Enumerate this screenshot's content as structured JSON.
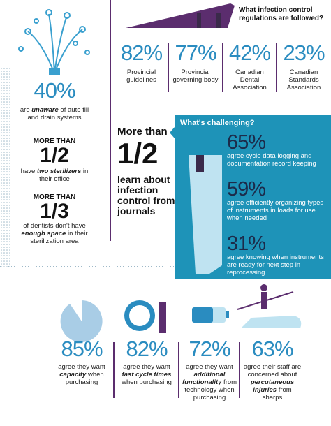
{
  "left": {
    "stat1": {
      "value": "40%",
      "text": [
        "are ",
        "unaware",
        " of auto fill and drain systems"
      ]
    },
    "stat2": {
      "lead": "MORE THAN",
      "fraction": "1/2",
      "text": [
        "have ",
        "two sterilizers",
        " in their office"
      ]
    },
    "stat3": {
      "lead": "MORE THAN",
      "fraction": "1/3",
      "text": [
        "of dentists don't have ",
        "enough space",
        " in their sterilization area"
      ]
    }
  },
  "regulations": {
    "title": "What infection control regulations are followed?",
    "items": [
      {
        "value": "82%",
        "label": "Provincial guidelines"
      },
      {
        "value": "77%",
        "label": "Provincial governing body"
      },
      {
        "value": "42%",
        "label": "Canadian Dental Association"
      },
      {
        "value": "23%",
        "label": "Canadian Standards Association"
      }
    ]
  },
  "journals": {
    "lead": "More than",
    "fraction": "1/2",
    "text": "learn about infection control from journals"
  },
  "challenging": {
    "title": "What's challenging?",
    "items": [
      {
        "value": "65%",
        "text": "agree cycle data logging and documentation record keeping"
      },
      {
        "value": "59%",
        "text": "agree efficiently organizing types of instruments in loads for use when needed"
      },
      {
        "value": "31%",
        "text": "agree knowing when instruments are ready for next step in reprocessing"
      }
    ]
  },
  "bottom": [
    {
      "value": "85%",
      "text": [
        "agree they want ",
        "capacity",
        " when purchasing"
      ]
    },
    {
      "value": "82%",
      "text": [
        "agree they want ",
        "fast cycle times",
        " when purchasing"
      ]
    },
    {
      "value": "72%",
      "text": [
        "agree they want ",
        "additional functionality",
        " from technology when purchasing"
      ]
    },
    {
      "value": "63%",
      "text": [
        "agree their staff are concerned about ",
        "percutaneous injuries",
        " from sharps"
      ]
    }
  ]
}
